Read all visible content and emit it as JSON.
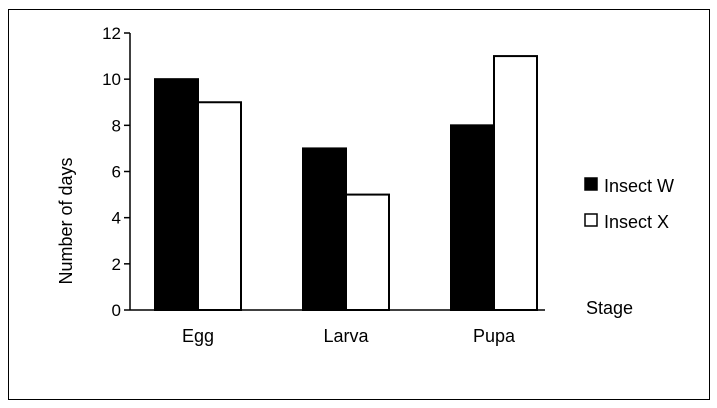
{
  "chart_data": {
    "type": "bar",
    "categories": [
      "Egg",
      "Larva",
      "Pupa"
    ],
    "series": [
      {
        "name": "Insect W",
        "values": [
          10,
          7,
          8
        ],
        "color": "#000000"
      },
      {
        "name": "Insect X",
        "values": [
          9,
          5,
          11
        ],
        "color": "#ffffff"
      }
    ],
    "title": "",
    "xlabel": "Stage",
    "ylabel": "Number of days",
    "ylim": [
      0,
      12
    ],
    "yticks": [
      0,
      2,
      4,
      6,
      8,
      10,
      12
    ],
    "grid": false,
    "legend_position": "right"
  }
}
